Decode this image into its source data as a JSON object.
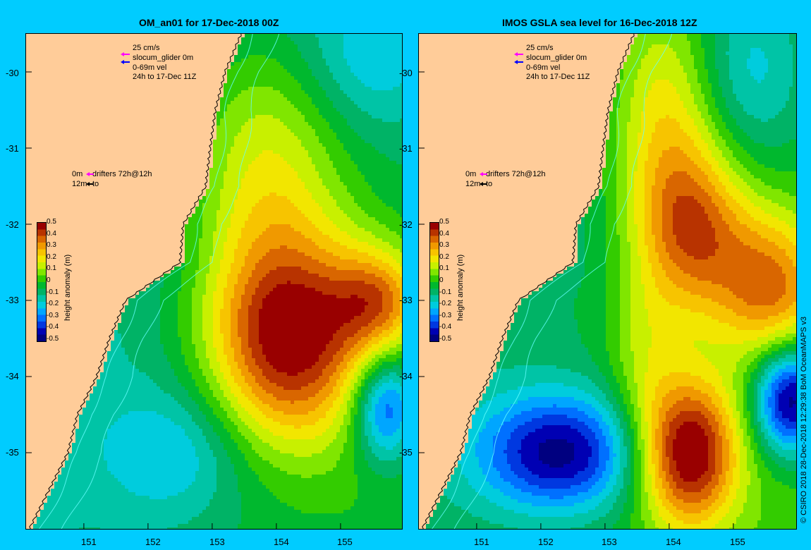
{
  "panels": [
    {
      "title": "OM_an01 for 17-Dec-2018 00Z"
    },
    {
      "title": "IMOS GSLA sea level  for 16-Dec-2018 12Z"
    }
  ],
  "legend": {
    "scale": "25 cm/s",
    "glider": "slocum_glider 0m",
    "velocity": "0-69m vel",
    "period": "24h to 17-Dec 11Z",
    "drifters_0m": "0m",
    "drifters_text": "drifters 72h@12h",
    "drifters_12m": "12m",
    "drifters_to": "to"
  },
  "axes": {
    "latitude_ticks": [
      "-30",
      "-31",
      "-32",
      "-33",
      "-34",
      "-35"
    ],
    "longitude_ticks": [
      "151",
      "152",
      "153",
      "154",
      "155"
    ]
  },
  "colorbar": {
    "label": "height anomaly (m)",
    "ticks": [
      "0.5",
      "0.4",
      "0.3",
      "0.2",
      "0.1",
      "0",
      "-0.1",
      "-0.2",
      "-0.3",
      "-0.4",
      "-0.5"
    ],
    "colors": [
      "#990000",
      "#b83300",
      "#d96600",
      "#f09900",
      "#f7c400",
      "#f2e600",
      "#c8f000",
      "#80e600",
      "#33cc00",
      "#00b82e",
      "#00b366",
      "#00c4a6",
      "#00ccdd",
      "#00a6ff",
      "#0070ff",
      "#0038e0",
      "#0000b3",
      "#000080"
    ]
  },
  "credit": "© CSIRO 2018   28-Dec-2018 12:29:38 BoM OceanMAPS v3",
  "colors": {
    "background": "#00ccff",
    "land": "#ffcc99",
    "glider_arrow": "#ff00ff",
    "velocity_arrow": "#0000ff"
  },
  "chart_data": {
    "type": "heatmap",
    "variable": "sea surface height anomaly (m)",
    "x_range_lon": [
      150.1,
      155.9
    ],
    "y_range_lat": [
      -36.0,
      -29.5
    ],
    "color_range": [
      -0.5,
      0.5
    ],
    "panels": [
      {
        "title": "OM_an01 for 17-Dec-2018 00Z",
        "features": [
          {
            "kind": "warm eddy",
            "lon": 154.2,
            "lat": -33.5,
            "value": 0.45
          },
          {
            "kind": "warm eddy",
            "lon": 155.6,
            "lat": -33.0,
            "value": 0.45
          },
          {
            "kind": "cool region",
            "lon": 152.4,
            "lat": -35.0,
            "value": -0.15
          },
          {
            "kind": "cool eddy",
            "lon": 155.7,
            "lat": -34.4,
            "value": -0.1
          }
        ]
      },
      {
        "title": "IMOS GSLA sea level  for 16-Dec-2018 12Z",
        "features": [
          {
            "kind": "warm eddy",
            "lon": 154.3,
            "lat": -35.0,
            "value": 0.48
          },
          {
            "kind": "warm eddy",
            "lon": 154.4,
            "lat": -32.1,
            "value": 0.35
          },
          {
            "kind": "warm ridge",
            "lon": 155.5,
            "lat": -32.7,
            "value": 0.35
          },
          {
            "kind": "cold eddy",
            "lon": 152.3,
            "lat": -35.0,
            "value": -0.35
          },
          {
            "kind": "cold eddy",
            "lon": 155.8,
            "lat": -34.4,
            "value": -0.35
          }
        ]
      }
    ]
  }
}
